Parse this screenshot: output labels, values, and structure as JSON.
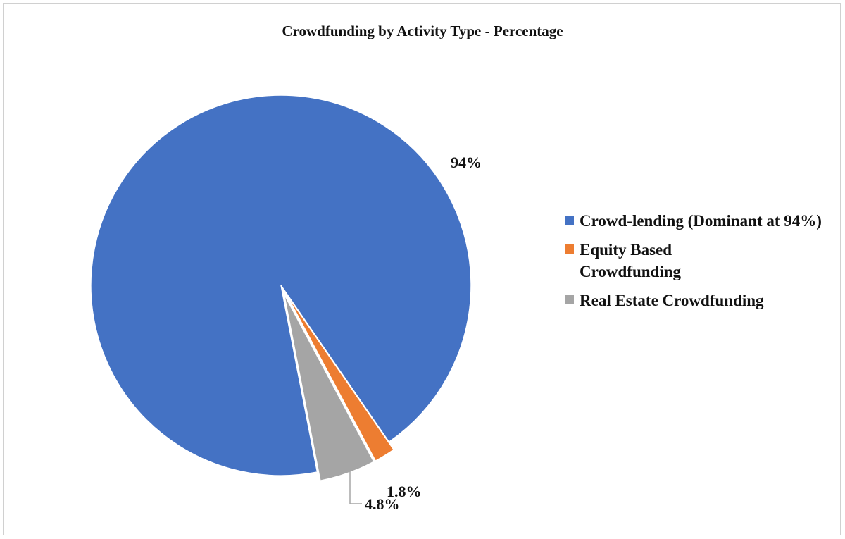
{
  "chart_data": {
    "type": "pie",
    "title": "Crowdfunding by Activity Type - Percentage",
    "start_angle_deg": 169,
    "slices": [
      {
        "name": "Crowd-lending (Dominant at 94%)",
        "value": 94,
        "label": "94%",
        "color": "#4472C4",
        "exploded": false
      },
      {
        "name": "Equity Based Crowdfunding",
        "value": 1.8,
        "label": "1.8%",
        "color": "#ED7D31",
        "exploded": true
      },
      {
        "name": "Real Estate Crowdfunding",
        "value": 4.8,
        "label": "4.8%",
        "color": "#A5A5A5",
        "exploded": true
      }
    ],
    "legend_position": "right"
  }
}
